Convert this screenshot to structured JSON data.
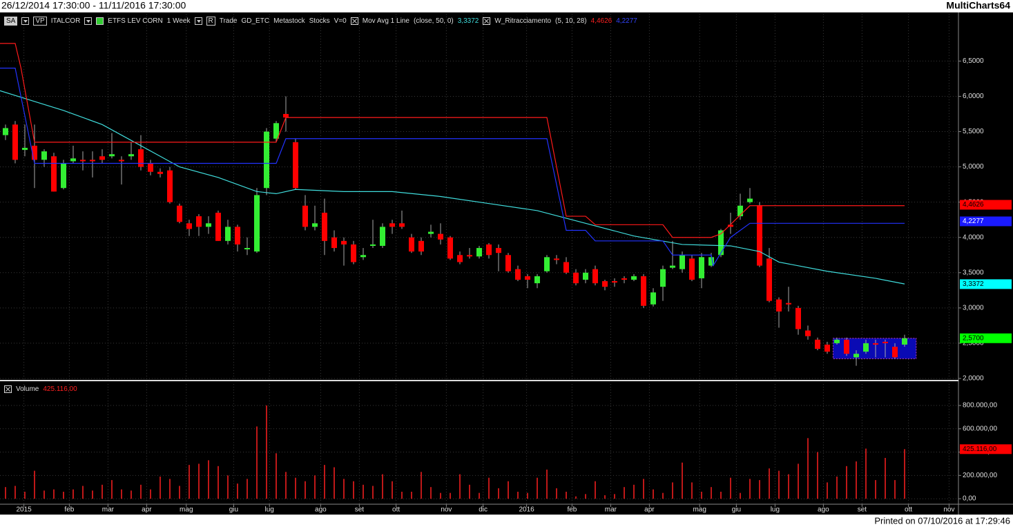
{
  "header": {
    "range": "26/12/2014 17:30:00 - 11/11/2016 17:30:00",
    "app": "MultiCharts64"
  },
  "toolbar": [
    "SA",
    "VP",
    "ITALCOR",
    "ETFS LEV CORN",
    "1 Week",
    "R",
    "Trade",
    "GD_ETC",
    "Metastock",
    "Stocks",
    "V=0"
  ],
  "indicators": [
    {
      "name": "Mov Avg 1 Line",
      "params": "(close, 50, 0)"
    },
    {
      "name": "W_Ritracciamento",
      "params": "(5, 10, 28)"
    }
  ],
  "footer": "Printed on 07/10/2016 at 17:29:46",
  "chart_data": [
    {
      "type": "candlestick",
      "up_color": "#33ee33",
      "down_color": "#ff0000",
      "xlim": [
        -0.57,
        98.5
      ],
      "ylim": [
        1.98,
        7.17
      ],
      "grid": true,
      "yticks": [
        {
          "value": 2,
          "label": "2,0000"
        },
        {
          "value": 2.5,
          "label": "2,5000"
        },
        {
          "value": 3,
          "label": "3,0000"
        },
        {
          "value": 3.5,
          "label": "3,5000"
        },
        {
          "value": 4,
          "label": "4,0000"
        },
        {
          "value": 4.5,
          "label": "4,5000"
        },
        {
          "value": 5,
          "label": "5,0000"
        },
        {
          "value": 5.5,
          "label": "5,5000"
        },
        {
          "value": 6,
          "label": "6,0000"
        },
        {
          "value": 6.5,
          "label": "6,5000"
        }
      ],
      "ohlc": [
        [
          5.45,
          5.6,
          5.38,
          5.55
        ],
        [
          5.6,
          5.65,
          5.05,
          5.1
        ],
        [
          5.24,
          5.6,
          5.15,
          5.27
        ],
        [
          5.3,
          5.6,
          4.7,
          5.1
        ],
        [
          5.1,
          5.25,
          5.0,
          5.22
        ],
        [
          5.15,
          5.2,
          4.65,
          4.65
        ],
        [
          4.7,
          5.1,
          4.68,
          5.05
        ],
        [
          5.08,
          5.3,
          5.05,
          5.12
        ],
        [
          5.1,
          5.22,
          4.95,
          5.08
        ],
        [
          5.1,
          5.22,
          4.85,
          5.08
        ],
        [
          5.15,
          5.25,
          5.05,
          5.1
        ],
        [
          5.15,
          5.48,
          5.12,
          5.18
        ],
        [
          5.1,
          5.15,
          4.75,
          5.08
        ],
        [
          5.15,
          5.35,
          5.1,
          5.18
        ],
        [
          5.25,
          5.45,
          4.95,
          5.0
        ],
        [
          5.05,
          5.1,
          4.88,
          4.93
        ],
        [
          4.93,
          4.98,
          4.85,
          4.9
        ],
        [
          4.95,
          5.0,
          4.48,
          4.5
        ],
        [
          4.45,
          4.48,
          4.2,
          4.22
        ],
        [
          4.2,
          4.25,
          4.02,
          4.12
        ],
        [
          4.3,
          4.33,
          4.02,
          4.15
        ],
        [
          4.15,
          4.3,
          4.05,
          4.2
        ],
        [
          4.35,
          4.38,
          3.95,
          3.95
        ],
        [
          3.95,
          4.25,
          3.9,
          4.15
        ],
        [
          4.15,
          4.18,
          3.8,
          3.9
        ],
        [
          3.85,
          4.0,
          3.75,
          3.85
        ],
        [
          3.8,
          4.7,
          3.78,
          4.6
        ],
        [
          4.7,
          5.55,
          4.6,
          5.5
        ],
        [
          5.4,
          5.65,
          5.35,
          5.62
        ],
        [
          5.75,
          6.0,
          5.5,
          5.7
        ],
        [
          5.35,
          5.4,
          4.68,
          4.7
        ],
        [
          4.45,
          4.6,
          4.1,
          4.15
        ],
        [
          4.15,
          4.45,
          4.1,
          4.2
        ],
        [
          4.35,
          4.55,
          3.75,
          3.95
        ],
        [
          4.0,
          4.1,
          3.8,
          3.85
        ],
        [
          3.95,
          4.0,
          3.6,
          3.9
        ],
        [
          3.9,
          3.95,
          3.62,
          3.65
        ],
        [
          3.72,
          3.85,
          3.68,
          3.75
        ],
        [
          3.88,
          4.25,
          3.85,
          3.9
        ],
        [
          3.88,
          4.2,
          3.85,
          4.15
        ],
        [
          4.2,
          4.25,
          4.05,
          4.15
        ],
        [
          4.2,
          4.38,
          4.12,
          4.15
        ],
        [
          4.0,
          4.05,
          3.78,
          3.8
        ],
        [
          3.95,
          4.0,
          3.75,
          3.8
        ],
        [
          4.05,
          4.18,
          4.0,
          4.08
        ],
        [
          4.05,
          4.2,
          3.9,
          3.97
        ],
        [
          4.0,
          4.02,
          3.68,
          3.7
        ],
        [
          3.75,
          3.8,
          3.62,
          3.65
        ],
        [
          3.75,
          3.85,
          3.7,
          3.73
        ],
        [
          3.73,
          3.88,
          3.7,
          3.85
        ],
        [
          3.9,
          3.92,
          3.7,
          3.75
        ],
        [
          3.85,
          3.9,
          3.52,
          3.78
        ],
        [
          3.75,
          3.78,
          3.5,
          3.52
        ],
        [
          3.55,
          3.6,
          3.38,
          3.4
        ],
        [
          3.45,
          3.48,
          3.28,
          3.4
        ],
        [
          3.35,
          3.48,
          3.28,
          3.45
        ],
        [
          3.52,
          3.75,
          3.5,
          3.72
        ],
        [
          3.7,
          3.75,
          3.62,
          3.68
        ],
        [
          3.65,
          3.72,
          3.48,
          3.5
        ],
        [
          3.5,
          3.55,
          3.32,
          3.35
        ],
        [
          3.4,
          3.55,
          3.35,
          3.5
        ],
        [
          3.55,
          3.6,
          3.32,
          3.35
        ],
        [
          3.38,
          3.4,
          3.25,
          3.3
        ],
        [
          3.38,
          3.42,
          3.3,
          3.36
        ],
        [
          3.42,
          3.45,
          3.35,
          3.4
        ],
        [
          3.4,
          3.48,
          3.38,
          3.45
        ],
        [
          3.45,
          3.48,
          3.0,
          3.03
        ],
        [
          3.05,
          3.28,
          3.02,
          3.22
        ],
        [
          3.3,
          3.6,
          3.1,
          3.55
        ],
        [
          3.57,
          3.95,
          3.55,
          3.6
        ],
        [
          3.55,
          3.8,
          3.5,
          3.75
        ],
        [
          3.7,
          3.75,
          3.38,
          3.4
        ],
        [
          3.42,
          3.78,
          3.28,
          3.72
        ],
        [
          3.6,
          3.78,
          3.58,
          3.72
        ],
        [
          3.75,
          4.12,
          3.72,
          4.1
        ],
        [
          4.18,
          4.35,
          4.05,
          4.15
        ],
        [
          4.3,
          4.62,
          4.25,
          4.45
        ],
        [
          4.5,
          4.7,
          4.48,
          4.55
        ],
        [
          4.45,
          4.5,
          3.58,
          3.6
        ],
        [
          3.7,
          3.85,
          3.08,
          3.1
        ],
        [
          3.12,
          3.15,
          2.72,
          2.95
        ],
        [
          3.07,
          3.3,
          2.95,
          3.05
        ],
        [
          3.0,
          3.03,
          2.62,
          2.7
        ],
        [
          2.68,
          2.75,
          2.55,
          2.6
        ],
        [
          2.55,
          2.58,
          2.4,
          2.42
        ],
        [
          2.48,
          2.52,
          2.35,
          2.38
        ],
        [
          2.5,
          2.58,
          2.48,
          2.55
        ],
        [
          2.55,
          2.58,
          2.32,
          2.35
        ],
        [
          2.3,
          2.4,
          2.18,
          2.35
        ],
        [
          2.38,
          2.55,
          2.35,
          2.5
        ],
        [
          2.5,
          2.55,
          2.3,
          2.48
        ],
        [
          2.52,
          2.55,
          2.3,
          2.5
        ],
        [
          2.45,
          2.5,
          2.28,
          2.3
        ],
        [
          2.48,
          2.62,
          2.45,
          2.57
        ]
      ],
      "lines": [
        {
          "color": "#40dede",
          "x": [
            -0.57,
            2,
            6,
            10,
            14,
            16,
            18,
            22,
            26,
            28,
            30,
            35,
            40,
            45,
            50,
            55,
            60,
            65,
            70,
            75,
            78,
            80,
            85,
            90,
            93
          ],
          "values": [
            6.08,
            5.97,
            5.8,
            5.6,
            5.3,
            5.15,
            5.0,
            4.85,
            4.65,
            4.62,
            4.68,
            4.65,
            4.65,
            4.58,
            4.48,
            4.38,
            4.2,
            4.02,
            3.9,
            3.88,
            3.8,
            3.65,
            3.52,
            3.42,
            3.34
          ]
        },
        {
          "color": "#ff1a1a",
          "x": [
            -0.57,
            1,
            1.6,
            3,
            28,
            29,
            56,
            58,
            60,
            61,
            68,
            69,
            73,
            74,
            77,
            93
          ],
          "values": [
            6.75,
            6.75,
            6.4,
            5.35,
            5.35,
            5.7,
            5.7,
            4.3,
            4.3,
            4.18,
            4.18,
            4.0,
            4.0,
            4.05,
            4.45,
            4.45
          ]
        },
        {
          "color": "#2233ff",
          "x": [
            -0.57,
            1,
            3,
            28,
            29,
            56,
            58,
            60,
            61,
            68,
            69,
            73,
            73.2,
            75,
            77,
            93
          ],
          "values": [
            6.4,
            6.4,
            5.05,
            5.05,
            5.4,
            5.4,
            4.1,
            4.1,
            3.95,
            3.95,
            3.75,
            3.75,
            3.6,
            4.0,
            4.2,
            4.2
          ]
        }
      ],
      "tags": [
        {
          "value": 4.4626,
          "label": "4,4626",
          "color": "#ff0000"
        },
        {
          "value": 4.2277,
          "label": "4,2277",
          "color": "#1a1aff"
        },
        {
          "value": 3.3372,
          "label": "3,3372",
          "color": "#00ffff"
        },
        {
          "value": 2.57,
          "label": "2,5700",
          "color": "#00ff00"
        }
      ],
      "box": {
        "x": [
          85.6,
          94.2
        ],
        "y": [
          2.28,
          2.57
        ],
        "color": "#0a0ab4"
      }
    },
    {
      "type": "bar",
      "title": "Volume",
      "color": "#ff2020",
      "xlim": [
        -0.57,
        98.5
      ],
      "ylim": [
        -47000,
        984000
      ],
      "grid": true,
      "yticks": [
        {
          "value": 0,
          "label": "0,00"
        },
        {
          "value": 200000,
          "label": "200.000,00"
        },
        {
          "value": 400000,
          "label": "400.000,00"
        },
        {
          "value": 600000,
          "label": "600.000,00"
        },
        {
          "value": 800000,
          "label": "800.000,00"
        }
      ],
      "values": [
        100000,
        110000,
        60000,
        240000,
        70000,
        80000,
        60000,
        80000,
        110000,
        70000,
        120000,
        160000,
        80000,
        70000,
        120000,
        80000,
        190000,
        170000,
        110000,
        290000,
        300000,
        330000,
        280000,
        200000,
        130000,
        170000,
        620000,
        800000,
        390000,
        230000,
        180000,
        150000,
        200000,
        290000,
        270000,
        170000,
        150000,
        120000,
        110000,
        210000,
        150000,
        60000,
        60000,
        230000,
        100000,
        50000,
        50000,
        210000,
        120000,
        50000,
        180000,
        90000,
        150000,
        60000,
        50000,
        180000,
        250000,
        90000,
        60000,
        20000,
        40000,
        150000,
        30000,
        40000,
        100000,
        120000,
        170000,
        80000,
        50000,
        140000,
        310000,
        140000,
        60000,
        100000,
        60000,
        180000,
        50000,
        170000,
        160000,
        260000,
        240000,
        210000,
        300000,
        520000,
        400000,
        140000,
        190000,
        280000,
        320000,
        430000,
        160000,
        350000,
        160000,
        425116
      ],
      "tag": {
        "value": 425116,
        "label": "425.116,00",
        "color": "#ff0000"
      },
      "xticks": [
        {
          "value": 1.9,
          "label": "2015"
        },
        {
          "value": 6.6,
          "label": "feb"
        },
        {
          "value": 10.6,
          "label": "mar"
        },
        {
          "value": 14.6,
          "label": "apr"
        },
        {
          "value": 18.7,
          "label": "mag"
        },
        {
          "value": 23.6,
          "label": "giu"
        },
        {
          "value": 27.3,
          "label": "lug"
        },
        {
          "value": 32.6,
          "label": "ago"
        },
        {
          "value": 36.6,
          "label": "set"
        },
        {
          "value": 40.4,
          "label": "ott"
        },
        {
          "value": 45.6,
          "label": "nov"
        },
        {
          "value": 49.4,
          "label": "dic"
        },
        {
          "value": 53.9,
          "label": "2016"
        },
        {
          "value": 58.6,
          "label": "feb"
        },
        {
          "value": 62.6,
          "label": "mar"
        },
        {
          "value": 66.6,
          "label": "apr"
        },
        {
          "value": 71.8,
          "label": "mag"
        },
        {
          "value": 75.6,
          "label": "giu"
        },
        {
          "value": 79.6,
          "label": "lug"
        },
        {
          "value": 84.6,
          "label": "ago"
        },
        {
          "value": 88.6,
          "label": "set"
        },
        {
          "value": 93.4,
          "label": "ott"
        },
        {
          "value": 97.6,
          "label": "nov"
        }
      ]
    }
  ]
}
